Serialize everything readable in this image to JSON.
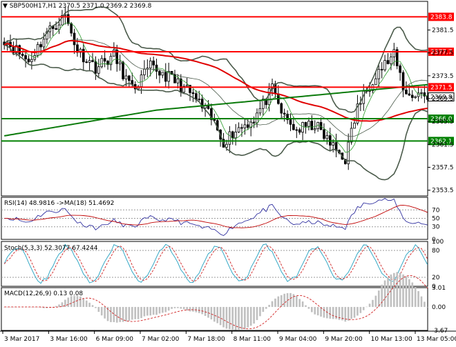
{
  "header": {
    "symbol_label": "SBP500H17,H1",
    "ohlc": "2370.5 2371.0 2369.2 2369.8"
  },
  "colors": {
    "candle": "#000000",
    "bollinger": "#4a5a4a",
    "ma_fast": "#2a9a2a",
    "ma_red": "#e00000",
    "ma_green_slow": "#0a7a0a",
    "line_red": "#ff0000",
    "line_green": "#008000",
    "rsi": "#3030a0",
    "rsi_ma": "#c00000",
    "stoch_main": "#20a0c0",
    "stoch_signal": "#d02020",
    "macd_hist": "#c0c0c0",
    "macd_signal": "#d02020"
  },
  "chart_data": [
    {
      "type": "candlestick",
      "title": "SBP500H17,H1",
      "ylim": [
        2352.5,
        2386.5
      ],
      "price_ticks": [
        "2381.5",
        "2377.5",
        "2373.5",
        "2369.5",
        "2365.5",
        "2361.5",
        "2357.5",
        "2353.5"
      ],
      "x_labels": [
        "3 Mar 2017",
        "3 Mar 16:00",
        "6 Mar 09:00",
        "7 Mar 02:00",
        "7 Mar 18:00",
        "8 Mar 11:00",
        "9 Mar 04:00",
        "9 Mar 20:00",
        "10 Mar 13:00",
        "13 Mar 05:00"
      ],
      "horizontal_levels": [
        {
          "value": 2383.8,
          "label": "2383.8",
          "color": "#ff0000"
        },
        {
          "value": 2377.7,
          "label": "2377.7",
          "color": "#ff0000"
        },
        {
          "value": 2371.5,
          "label": "2371.5",
          "color": "#ff0000"
        },
        {
          "value": 2366.0,
          "label": "2366.0",
          "color": "#008000"
        },
        {
          "value": 2362.1,
          "label": "2362.1",
          "color": "#008000"
        }
      ],
      "current_price": {
        "value": 2369.8,
        "label": "2369.8"
      },
      "candles_count": 140
    },
    {
      "type": "line",
      "title": "RSI(14) 48.9816  ->MA(18) 51.4692",
      "rsi_value": 48.9816,
      "ma_value": 51.4692,
      "ylim": [
        0,
        100
      ],
      "levels": [
        "70",
        "50",
        "30",
        "0"
      ],
      "level_values": [
        70,
        50,
        30,
        0
      ]
    },
    {
      "type": "line",
      "title": "Stoch(5,3,3) 52.3077 67.4244",
      "main_value": 52.3077,
      "signal_value": 67.4244,
      "ylim": [
        0,
        100
      ],
      "levels": [
        "100",
        "80",
        "20",
        "0"
      ],
      "level_values": [
        100,
        80,
        20,
        0
      ]
    },
    {
      "type": "bar",
      "title": "MACD(12,26,9) 0.13 0.08",
      "macd_value": 0.13,
      "signal_value": 0.08,
      "ylim": [
        -3.67,
        3.01
      ],
      "levels": [
        "3.01",
        "0.00",
        "-3.67"
      ],
      "level_values": [
        3.01,
        0,
        -3.67
      ]
    }
  ]
}
